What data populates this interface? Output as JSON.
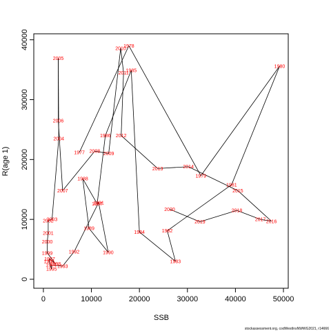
{
  "chart_data": {
    "type": "line",
    "xlabel": "SSB",
    "ylabel": "R(age 1)",
    "xlim": [
      -2000,
      51000
    ],
    "ylim": [
      -1500,
      41000
    ],
    "x_ticks": [
      0,
      10000,
      20000,
      30000,
      40000,
      50000
    ],
    "y_ticks": [
      0,
      10000,
      20000,
      30000,
      40000
    ],
    "x_tick_labels": [
      "0",
      "10000",
      "20000",
      "30000",
      "40000",
      "50000"
    ],
    "y_tick_labels": [
      "0",
      "10000",
      "20000",
      "30000",
      "40000"
    ],
    "grid": false,
    "line_color": "#000000",
    "label_color": "#ff0000",
    "points": [
      {
        "year": "1977",
        "ssb": 7500,
        "r": 21200
      },
      {
        "year": "1978",
        "ssb": 17800,
        "r": 39000
      },
      {
        "year": "1979",
        "ssb": 32800,
        "r": 17300
      },
      {
        "year": "1980",
        "ssb": 49200,
        "r": 35600
      },
      {
        "year": "1981",
        "ssb": 39200,
        "r": 15800
      },
      {
        "year": "1982",
        "ssb": 25800,
        "r": 8100
      },
      {
        "year": "1983",
        "ssb": 27500,
        "r": 3000
      },
      {
        "year": "1984",
        "ssb": 20000,
        "r": 7900
      },
      {
        "year": "1985",
        "ssb": 18300,
        "r": 34900
      },
      {
        "year": "1986",
        "ssb": 12900,
        "r": 24000
      },
      {
        "year": "1987",
        "ssb": 11200,
        "r": 12600
      },
      {
        "year": "1988",
        "ssb": 8200,
        "r": 16800
      },
      {
        "year": "1989",
        "ssb": 9500,
        "r": 8500
      },
      {
        "year": "1990",
        "ssb": 13500,
        "r": 4500
      },
      {
        "year": "1991",
        "ssb": 11500,
        "r": 12800
      },
      {
        "year": "1992",
        "ssb": 6400,
        "r": 4600
      },
      {
        "year": "1993",
        "ssb": 4000,
        "r": 2200
      },
      {
        "year": "1994",
        "ssb": 1600,
        "r": 2400
      },
      {
        "year": "1995",
        "ssb": 1700,
        "r": 1700
      },
      {
        "year": "1996",
        "ssb": 1200,
        "r": 3000
      },
      {
        "year": "1997",
        "ssb": 1300,
        "r": 3400
      },
      {
        "year": "1998",
        "ssb": 2500,
        "r": 2600
      },
      {
        "year": "1999",
        "ssb": 800,
        "r": 4400
      },
      {
        "year": "2000",
        "ssb": 800,
        "r": 6300
      },
      {
        "year": "2001",
        "ssb": 1000,
        "r": 7700
      },
      {
        "year": "2002",
        "ssb": 1000,
        "r": 9800
      },
      {
        "year": "2003",
        "ssb": 1800,
        "r": 10000
      },
      {
        "year": "2004",
        "ssb": 3200,
        "r": 23500
      },
      {
        "year": "2005",
        "ssb": 3100,
        "r": 36900
      },
      {
        "year": "2006",
        "ssb": 3100,
        "r": 26500
      },
      {
        "year": "2007",
        "ssb": 4000,
        "r": 14800
      },
      {
        "year": "2008",
        "ssb": 10700,
        "r": 21400
      },
      {
        "year": "2009",
        "ssb": 13600,
        "r": 21000
      },
      {
        "year": "2010",
        "ssb": 16100,
        "r": 38600
      },
      {
        "year": "2011",
        "ssb": 16700,
        "r": 34500
      },
      {
        "year": "2012",
        "ssb": 16200,
        "r": 24000
      },
      {
        "year": "2013",
        "ssb": 23800,
        "r": 18500
      },
      {
        "year": "2014",
        "ssb": 30200,
        "r": 18800
      },
      {
        "year": "2015",
        "ssb": 40500,
        "r": 14800
      },
      {
        "year": "2016",
        "ssb": 47500,
        "r": 9700
      },
      {
        "year": "2017",
        "ssb": 45200,
        "r": 10000
      },
      {
        "year": "2018",
        "ssb": 40300,
        "r": 11500
      },
      {
        "year": "2019",
        "ssb": 32600,
        "r": 9600
      },
      {
        "year": "2020",
        "ssb": 26300,
        "r": 11700
      }
    ]
  },
  "credit": "stockassessment.org, codWestInsNWWG2021, r14666"
}
